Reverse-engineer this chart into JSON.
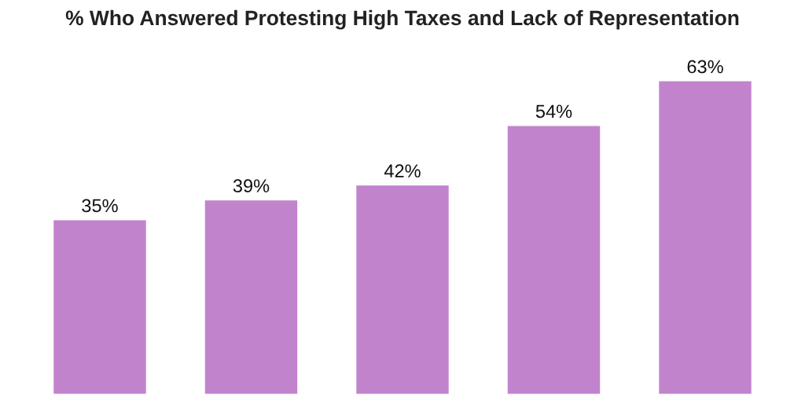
{
  "chart_data": {
    "type": "bar",
    "title": "% Who Answered Protesting High Taxes and Lack of Representation",
    "categories": [
      null,
      null,
      null,
      null,
      null
    ],
    "values": [
      35,
      39,
      42,
      54,
      63
    ],
    "value_labels": [
      "35%",
      "39%",
      "42%",
      "54%",
      "63%"
    ],
    "color": "#c283cd",
    "grid": false
  }
}
